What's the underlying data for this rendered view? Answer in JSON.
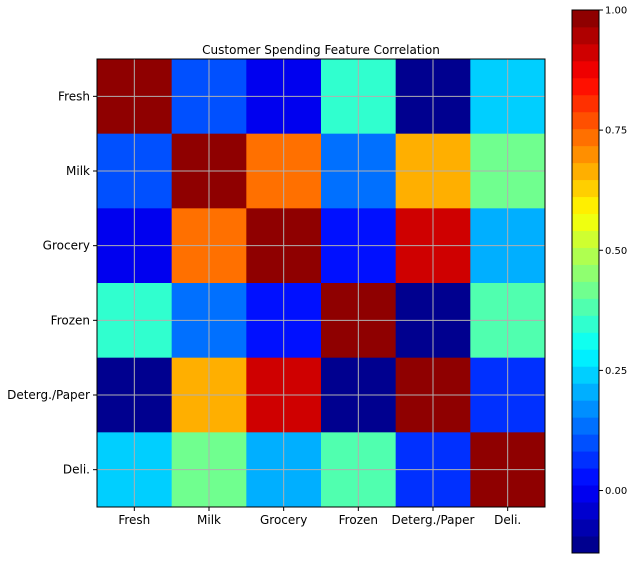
{
  "chart_data": {
    "type": "heatmap",
    "title": "Customer Spending Feature Correlation",
    "xlabel": "",
    "ylabel": "",
    "categories": [
      "Fresh",
      "Milk",
      "Grocery",
      "Frozen",
      "Deterg./Paper",
      "Deli."
    ],
    "values": [
      [
        1.0,
        0.1,
        -0.01,
        0.35,
        -0.1,
        0.24
      ],
      [
        0.1,
        1.0,
        0.73,
        0.12,
        0.66,
        0.41
      ],
      [
        -0.01,
        0.73,
        1.0,
        0.04,
        0.92,
        0.21
      ],
      [
        0.35,
        0.12,
        0.04,
        1.0,
        -0.13,
        0.39
      ],
      [
        -0.1,
        0.66,
        0.92,
        -0.13,
        1.0,
        0.07
      ],
      [
        0.24,
        0.41,
        0.21,
        0.39,
        0.07,
        1.0
      ]
    ],
    "colorbar": {
      "min": -0.13,
      "max": 1.0,
      "ticks": [
        0.0,
        0.25,
        0.5,
        0.75,
        1.0
      ],
      "tick_labels": [
        "0.00",
        "0.25",
        "0.50",
        "0.75",
        "1.00"
      ],
      "colormap": "jet",
      "levels": 32
    },
    "grid": true
  }
}
